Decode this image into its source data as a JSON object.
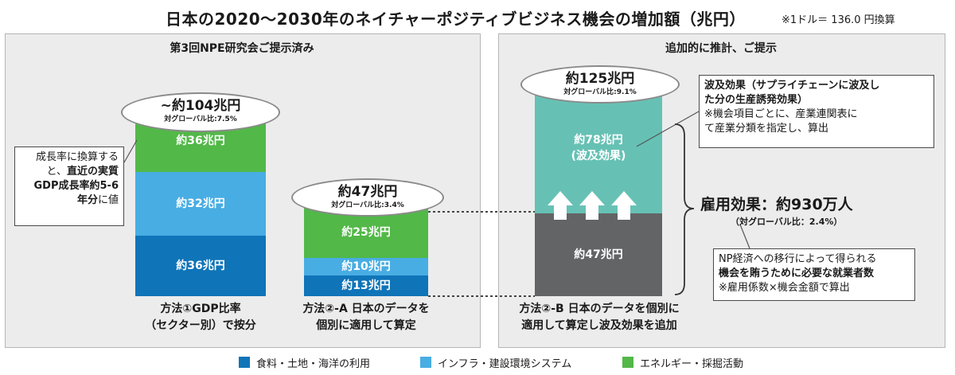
{
  "title": "日本の2020～2030年のネイチャーポジティブビジネス機会の増加額（兆円）",
  "exchange_note": "※1ドル＝ 136.0 円換算",
  "panels": {
    "left_header": "第3回NPE研究会ご提示済み",
    "right_header": "追加的に推計、ご提示"
  },
  "bars": {
    "method1": {
      "total": "~約104兆円",
      "share": "対グローバル比:7.5%",
      "energy": "約36兆円",
      "infra": "約32兆円",
      "food": "約36兆円",
      "caption1": "方法①GDP比率",
      "caption2": "（セクター別）で按分"
    },
    "method2a": {
      "total": "約47兆円",
      "share": "対グローバル比:3.4%",
      "energy": "約25兆円",
      "infra": "約10兆円",
      "food": "約13兆円",
      "caption1": "方法②-A 日本のデータを",
      "caption2": "個別に適用して算定"
    },
    "method2b": {
      "total": "約125兆円",
      "share": "対グローバル比:9.1%",
      "ripple1": "約78兆円",
      "ripple2": "(波及効果)",
      "base": "約47兆円",
      "caption1": "方法②-B 日本のデータを個別に",
      "caption2": "適用して算定し波及効果を追加"
    }
  },
  "callouts": {
    "growth": {
      "line1": "成長率に換算する",
      "line2a": "と、",
      "line2b": "直近の実質",
      "line3": "GDP成長率約5-6",
      "line4a": "年分",
      "line4b": "に値"
    },
    "ripple": {
      "line1": "波及効果（サプライチェーンに波及し",
      "line2": "た分の生産誘発効果）",
      "line3": "※機会項目ごとに、産業連関表に",
      "line4": "て産業分類を指定し、算出"
    },
    "employment": {
      "title": "雇用効果：約930万人",
      "sub": "（対グローバル比：2.4%）",
      "line1": "NP経済への移行によって得られる",
      "line2": "機会を賄うために必要な就業者数",
      "line3": "※雇用係数×機会金額で算出"
    }
  },
  "legend": [
    {
      "label": "食料・土地・海洋の利用",
      "color": "#0f74b8"
    },
    {
      "label": "インフラ・建設環境システム",
      "color": "#48ade3"
    },
    {
      "label": "エネルギー・採掘活動",
      "color": "#52b848"
    }
  ],
  "chart_data": {
    "type": "bar",
    "categories": [
      "方法①GDP比率（セクター別）で按分",
      "方法②-A 日本のデータを個別に適用して算定",
      "方法②-B 日本のデータを個別に適用して算定し波及効果を追加"
    ],
    "series": [
      {
        "name": "食料・土地・海洋の利用",
        "values": [
          36,
          13,
          null
        ]
      },
      {
        "name": "インフラ・建設環境システム",
        "values": [
          32,
          10,
          null
        ]
      },
      {
        "name": "エネルギー・採掘活動",
        "values": [
          36,
          25,
          null
        ]
      }
    ],
    "method2b": {
      "base": 47,
      "ripple": 78,
      "total": 125
    },
    "totals": [
      104,
      47,
      125
    ],
    "global_share_percent": [
      7.5,
      3.4,
      9.1
    ],
    "employment_million_persons_equiv": "約930万人"
  }
}
